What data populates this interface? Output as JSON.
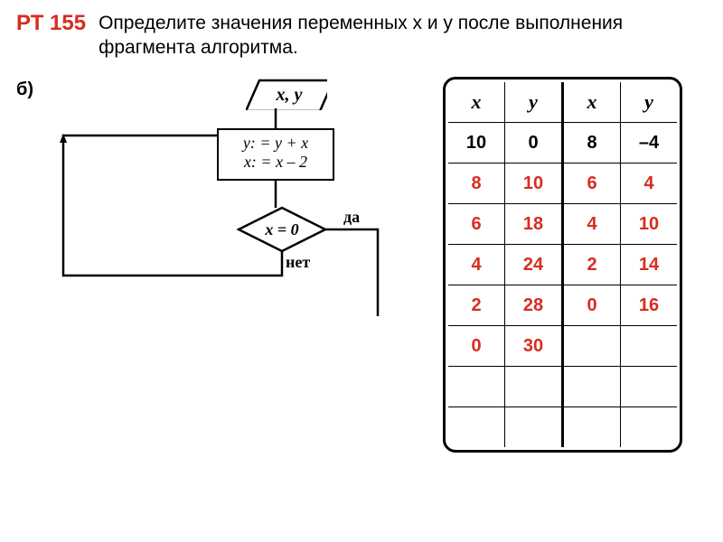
{
  "header": {
    "label": "РТ 155",
    "label_color": "#d62d20",
    "task": "Определите значения переменных x и y после выполнения фрагмента алгоритма."
  },
  "sub": "б)",
  "flowchart": {
    "type": "flowchart",
    "io_text": "x, y",
    "process_line1": "y: = y + x",
    "process_line2": "x: = x – 2",
    "condition": "x = 0",
    "yes_label": "да",
    "no_label": "нет",
    "stroke": "#000000",
    "stroke_width": 2.5
  },
  "table": {
    "type": "table",
    "header_color": "#000000",
    "value_color": "#d62d20",
    "columns": [
      "x",
      "y",
      "x",
      "y"
    ],
    "rows": [
      [
        "10",
        "0",
        "8",
        "–4"
      ],
      [
        "8",
        "10",
        "6",
        "4"
      ],
      [
        "6",
        "18",
        "4",
        "10"
      ],
      [
        "4",
        "24",
        "2",
        "14"
      ],
      [
        "2",
        "28",
        "0",
        "16"
      ],
      [
        "0",
        "30",
        "",
        ""
      ],
      [
        "",
        "",
        "",
        ""
      ],
      [
        "",
        "",
        "",
        ""
      ]
    ],
    "black_row_indices": [
      0
    ]
  },
  "colors": {
    "red": "#d62d20",
    "black": "#000000",
    "bg": "#ffffff"
  }
}
